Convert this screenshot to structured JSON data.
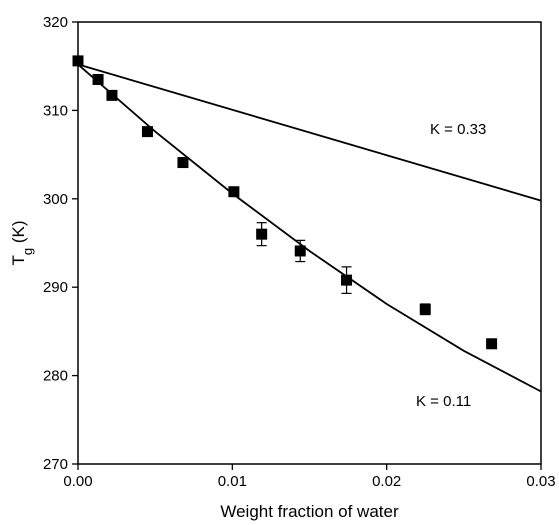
{
  "chart_data": {
    "type": "scatter",
    "xlabel": "Weight fraction of water",
    "ylabel": "T",
    "ylabel_sub": "g",
    "ylabel_unit": " (K)",
    "xlim": [
      0.0,
      0.03
    ],
    "ylim": [
      270,
      320
    ],
    "x_ticks": [
      0.0,
      0.01,
      0.02,
      0.03
    ],
    "x_tick_labels": [
      "0.00",
      "0.01",
      "0.02",
      "0.03"
    ],
    "y_ticks": [
      270,
      280,
      290,
      300,
      310,
      320
    ],
    "y_tick_labels": [
      "270",
      "280",
      "290",
      "300",
      "310",
      "320"
    ],
    "grid": false,
    "series": [
      {
        "marker": "square",
        "points": [
          {
            "x": 0.0,
            "y": 315.6,
            "err": 0
          },
          {
            "x": 0.0013,
            "y": 313.5,
            "err": 0
          },
          {
            "x": 0.0022,
            "y": 311.7,
            "err": 0
          },
          {
            "x": 0.0045,
            "y": 307.6,
            "err": 0
          },
          {
            "x": 0.0068,
            "y": 304.1,
            "err": 0
          },
          {
            "x": 0.0101,
            "y": 300.8,
            "err": 0
          },
          {
            "x": 0.0119,
            "y": 296.0,
            "err": 1.3
          },
          {
            "x": 0.0144,
            "y": 294.1,
            "err": 1.2
          },
          {
            "x": 0.0174,
            "y": 290.8,
            "err": 1.5
          },
          {
            "x": 0.0225,
            "y": 287.5,
            "err": 0.6
          },
          {
            "x": 0.0268,
            "y": 283.6,
            "err": 0.5
          }
        ]
      }
    ],
    "curves": [
      {
        "label": "K = 0.33",
        "points": [
          [
            0.0,
            315.2
          ],
          [
            0.03,
            299.8
          ]
        ]
      },
      {
        "label": "K = 0.11",
        "points": [
          [
            0.0,
            315.2
          ],
          [
            0.005,
            307.6
          ],
          [
            0.01,
            300.6
          ],
          [
            0.015,
            294.1
          ],
          [
            0.02,
            288.1
          ],
          [
            0.025,
            282.8
          ],
          [
            0.03,
            278.2
          ]
        ]
      }
    ],
    "colors": {
      "marks": "#000000",
      "background": "#ffffff"
    }
  }
}
